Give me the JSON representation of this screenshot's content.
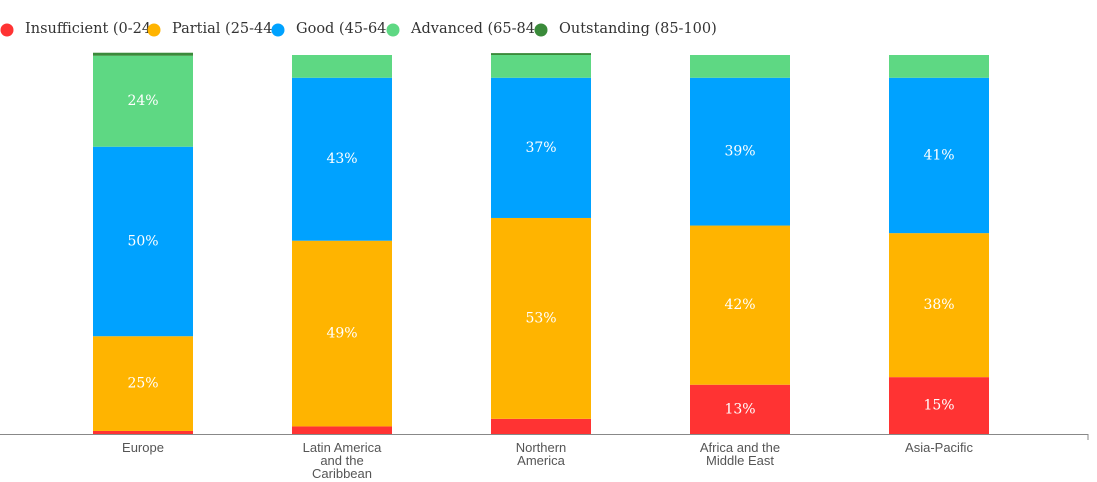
{
  "chart_data": {
    "type": "stacked-bar",
    "categories": [
      "Europe",
      "Latin America and the Caribbean",
      "Northern America",
      "Africa and the Middle East",
      "Asia-Pacific"
    ],
    "ylim": [
      0,
      100
    ],
    "series": [
      {
        "name": "Insufficient (0-24",
        "color": "#ff3333",
        "values": [
          0.8,
          2,
          4,
          13,
          15
        ],
        "value_labels": [
          null,
          null,
          null,
          "13%",
          "15%"
        ]
      },
      {
        "name": "Partial (25-44",
        "color": "#ffb400",
        "values": [
          25,
          49,
          53,
          42,
          38
        ],
        "value_labels": [
          "25%",
          "49%",
          "53%",
          "42%",
          "38%"
        ]
      },
      {
        "name": "Good (45-64",
        "color": "#00a2ff",
        "values": [
          50,
          43,
          37,
          39,
          41
        ],
        "value_labels": [
          "50%",
          "43%",
          "37%",
          "39%",
          "41%"
        ]
      },
      {
        "name": "Advanced (65-84",
        "color": "#5ed883",
        "values": [
          24,
          6,
          6,
          6,
          6
        ],
        "value_labels": [
          "24%",
          null,
          null,
          null,
          null
        ]
      },
      {
        "name": "Outstanding (85-100)",
        "color": "#3a8a3a",
        "values": [
          0.8,
          0,
          0.5,
          0,
          0
        ],
        "value_labels": [
          null,
          null,
          null,
          null,
          null
        ]
      }
    ]
  }
}
